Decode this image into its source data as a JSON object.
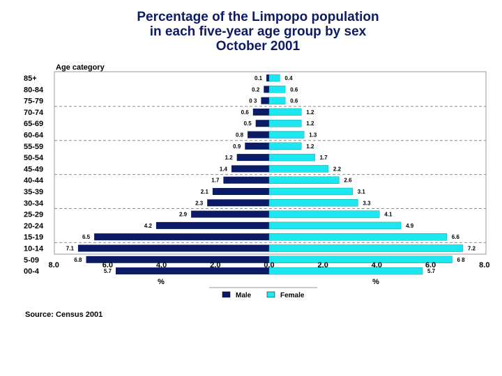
{
  "chart_data": {
    "type": "bar",
    "orientation": "horizontal-population-pyramid",
    "title_lines": [
      "Percentage of the Limpopo population",
      "in each five-year age group by sex",
      "October 2001"
    ],
    "ylabel": "Age category",
    "x_unit_left": "%",
    "x_unit_right": "%",
    "xlim": [
      -8,
      8
    ],
    "x_tick_values": [
      -8,
      -6,
      -4,
      -2,
      0,
      2,
      4,
      6,
      8
    ],
    "x_tick_labels": [
      "8.0",
      "6.0",
      "4.0",
      "2.0",
      "0.0",
      "2.0",
      "4.0",
      "6.0",
      "8.0"
    ],
    "categories": [
      "85+",
      "80-84",
      "75-79",
      "70-74",
      "65-69",
      "60-64",
      "55-59",
      "50-54",
      "45-49",
      "40-44",
      "35-39",
      "30-34",
      "25-29",
      "20-24",
      "15-19",
      "10-14",
      "5-09",
      "00-4"
    ],
    "series": [
      {
        "name": "Male",
        "color": "#0d1a66",
        "values": [
          0.1,
          0.2,
          0.3,
          0.6,
          0.5,
          0.8,
          0.9,
          1.2,
          1.4,
          1.7,
          2.1,
          2.3,
          2.9,
          4.2,
          6.5,
          7.1,
          6.8,
          5.7
        ],
        "labels": [
          "0.1",
          "0.2",
          "0 3",
          "0.6",
          "0.5",
          "0.8",
          "0.9",
          "1.2",
          "1.4",
          "1.7",
          "2.1",
          "2.3",
          "2.9",
          "4.2",
          "6.5",
          "7.1",
          "6.8",
          "5.7"
        ]
      },
      {
        "name": "Female",
        "color": "#1ce6f0",
        "values": [
          0.4,
          0.6,
          0.6,
          1.2,
          1.2,
          1.3,
          1.2,
          1.7,
          2.2,
          2.6,
          3.1,
          3.3,
          4.1,
          4.9,
          6.6,
          7.2,
          6.8,
          5.7
        ],
        "labels": [
          "0.4",
          "0.6",
          "0.6",
          "1.2",
          "1.2",
          "1.3",
          "1.2",
          "1.7",
          "2.2",
          "2.6",
          "3.1",
          "3.3",
          "4.1",
          "4.9",
          "6.6",
          "7.2",
          "6 8",
          "5.7"
        ]
      }
    ],
    "gridlines": "dashed horizontal every third age group",
    "legend_position": "bottom-center"
  },
  "source": "Source: Census 2001"
}
